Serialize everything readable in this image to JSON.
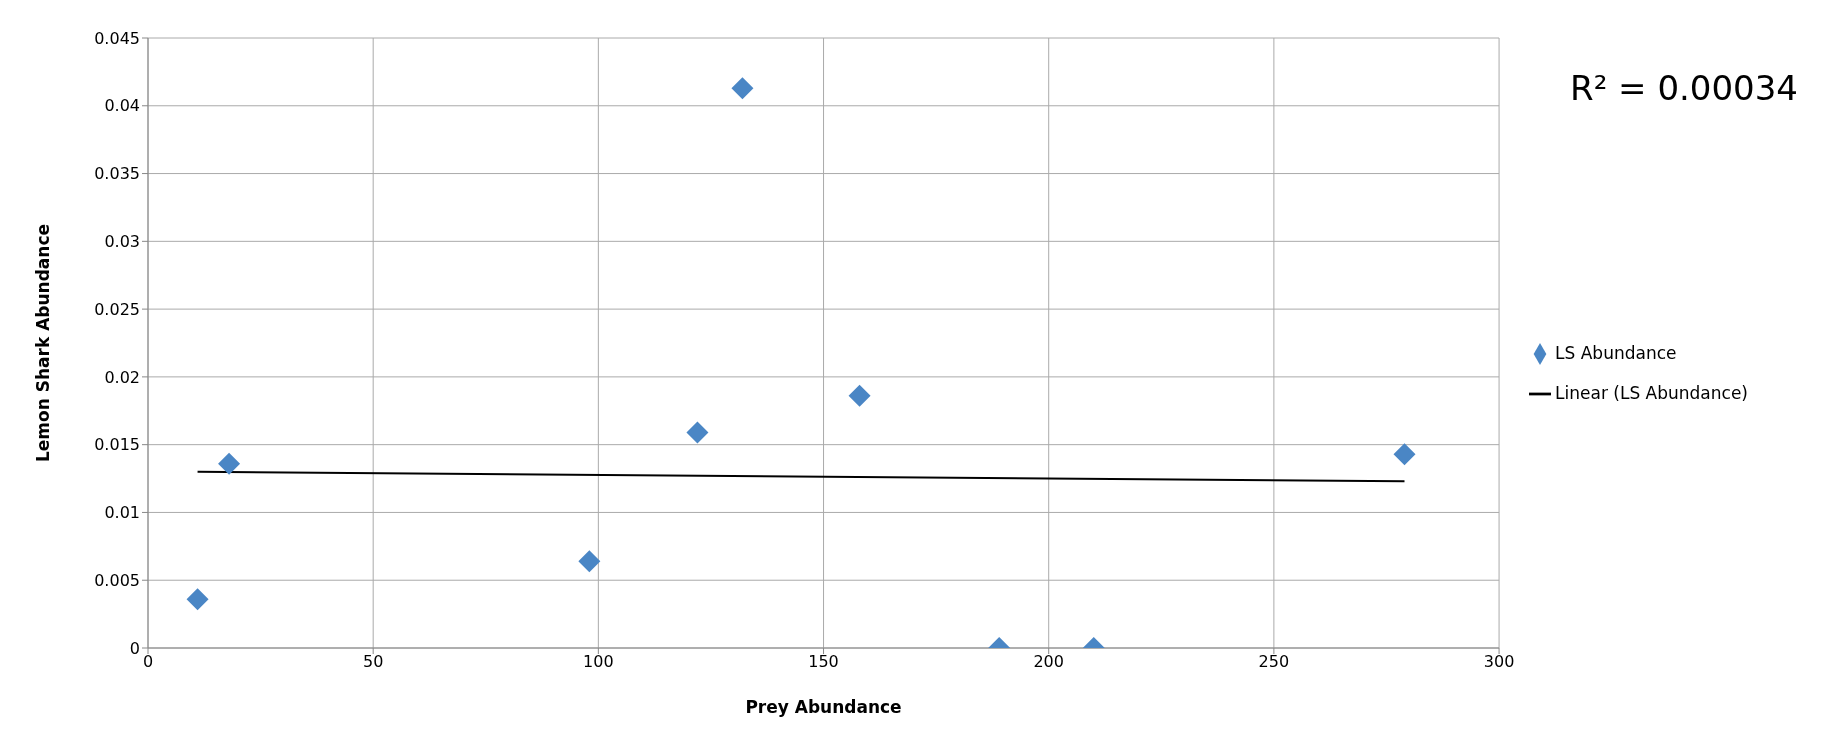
{
  "chart_data": {
    "type": "scatter",
    "xlabel": "Prey Abundance",
    "ylabel": "Lemon Shark Abundance",
    "annotations": [
      "R² = 0.00034"
    ],
    "series": [
      {
        "name": "LS Abundance",
        "marker": "diamond",
        "color": "#4a86c5",
        "x": [
          11,
          18,
          98,
          122,
          132,
          158,
          189,
          210,
          279
        ],
        "values": [
          0.0036,
          0.0136,
          0.0064,
          0.0159,
          0.0413,
          0.0186,
          0,
          0,
          0.0143
        ]
      },
      {
        "name": "Linear (LS Abundance)",
        "type": "line",
        "marker": "none",
        "color": "#000000",
        "x": [
          11,
          279
        ],
        "values": [
          0.013,
          0.0123
        ]
      }
    ],
    "xlim": [
      0,
      300
    ],
    "xticks": [
      0,
      50,
      100,
      150,
      200,
      250,
      300
    ],
    "ylim": [
      0,
      0.045
    ],
    "yticks": [
      0,
      0.005,
      0.01,
      0.015,
      0.02,
      0.025,
      0.03,
      0.035,
      0.04,
      0.045
    ],
    "grid": true,
    "legend": "right",
    "line_style": "solid"
  }
}
